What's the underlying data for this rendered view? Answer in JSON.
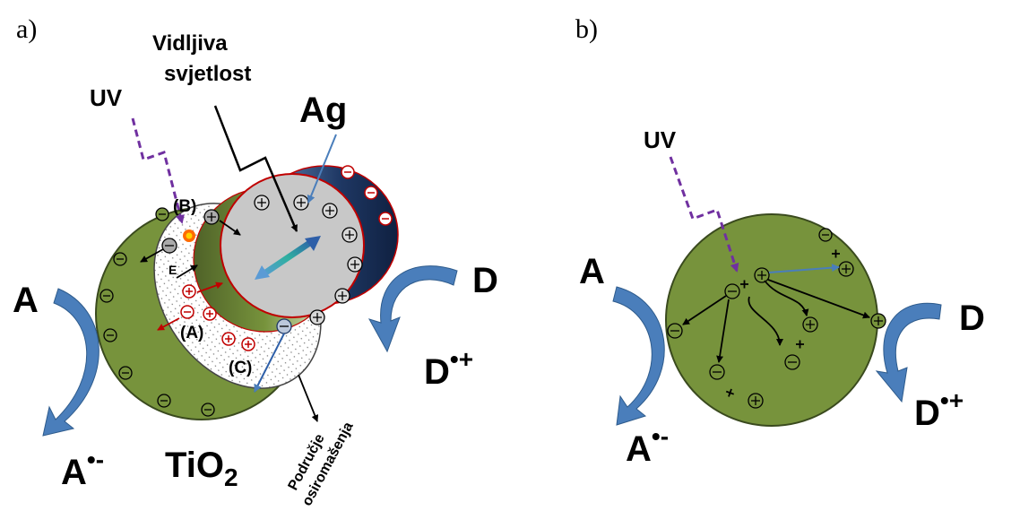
{
  "colors": {
    "tio2": "#77933c",
    "tio2_dark": "#4f6228",
    "ag": "#c8c8c8",
    "ag_dark": "#1f3864",
    "arrow_blue": "#4a7ebb",
    "uv_purple": "#7030a0",
    "red": "#c00000"
  },
  "panel_a": {
    "label": "a)",
    "uv": "UV",
    "visible_light": [
      "Vidljiva",
      "svjetlost"
    ],
    "ag": "Ag",
    "b_label": "(B)",
    "a_label": "(A)",
    "c_label": "(C)",
    "e_label": "E",
    "acceptor": "A",
    "acceptor_radical": "A",
    "acceptor_charge": "•-",
    "donor": "D",
    "donor_radical": "D",
    "donor_charge": "•+",
    "tio2": "TiO",
    "tio2_sub": "2",
    "depletion": [
      "Područje",
      "osiromašenja"
    ]
  },
  "panel_b": {
    "label": "b)",
    "uv": "UV",
    "acceptor": "A",
    "acceptor_radical": "A",
    "acceptor_charge": "•-",
    "donor": "D",
    "donor_radical": "D",
    "donor_charge": "•+"
  }
}
